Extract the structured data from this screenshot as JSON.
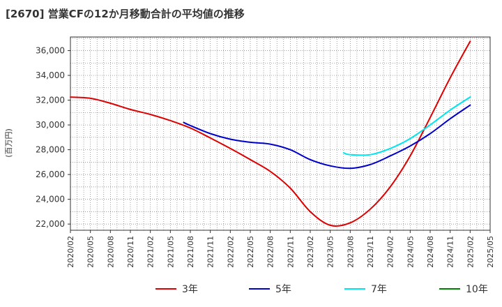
{
  "chart_data": {
    "type": "line",
    "title": "[2670]  営業CFの12か月移動合計の平均値の推移",
    "ylabel": "(百万円)",
    "xlabel": "",
    "ylim": [
      21500,
      37100
    ],
    "yticks": [
      22000,
      24000,
      26000,
      28000,
      30000,
      32000,
      34000,
      36000
    ],
    "ytick_labels": [
      "22,000",
      "24,000",
      "26,000",
      "28,000",
      "30,000",
      "32,000",
      "34,000",
      "36,000"
    ],
    "xlim": [
      "2020-02",
      "2025-05"
    ],
    "xticks": [
      "2020/02",
      "2020/05",
      "2020/08",
      "2020/11",
      "2021/02",
      "2021/05",
      "2021/08",
      "2021/11",
      "2022/02",
      "2022/05",
      "2022/08",
      "2022/11",
      "2023/02",
      "2023/05",
      "2023/08",
      "2023/11",
      "2024/02",
      "2024/05",
      "2024/08",
      "2024/11",
      "2025/02",
      "2025/05"
    ],
    "grid": true,
    "legend_position": "bottom",
    "series": [
      {
        "name": "3年",
        "color": "#dd0000",
        "x": [
          "2020-02",
          "2020-05",
          "2020-08",
          "2020-11",
          "2021-02",
          "2021-05",
          "2021-08",
          "2021-11",
          "2022-02",
          "2022-05",
          "2022-08",
          "2022-11",
          "2023-02",
          "2023-05",
          "2023-08",
          "2023-11",
          "2024-02",
          "2024-05",
          "2024-08",
          "2024-11",
          "2025-02"
        ],
        "values": [
          32250,
          32150,
          31750,
          31250,
          30850,
          30350,
          29750,
          28950,
          28100,
          27200,
          26250,
          24900,
          23000,
          21900,
          22100,
          23200,
          25000,
          27500,
          30600,
          33800,
          36750
        ]
      },
      {
        "name": "5年",
        "color": "#0000cc",
        "x": [
          "2021-07",
          "2021-08",
          "2021-11",
          "2022-02",
          "2022-05",
          "2022-08",
          "2022-11",
          "2023-02",
          "2023-05",
          "2023-08",
          "2023-11",
          "2024-02",
          "2024-05",
          "2024-08",
          "2024-11",
          "2025-02"
        ],
        "values": [
          30200,
          29950,
          29300,
          28850,
          28600,
          28450,
          28000,
          27200,
          26700,
          26500,
          26800,
          27500,
          28300,
          29300,
          30500,
          31600
        ]
      },
      {
        "name": "7年",
        "color": "#00e5ee",
        "x": [
          "2023-07",
          "2023-08",
          "2023-11",
          "2024-02",
          "2024-05",
          "2024-08",
          "2024-11",
          "2025-02"
        ],
        "values": [
          27750,
          27600,
          27600,
          28100,
          28900,
          30000,
          31200,
          32250
        ]
      },
      {
        "name": "10年",
        "color": "#008000",
        "x": [],
        "values": []
      }
    ]
  }
}
